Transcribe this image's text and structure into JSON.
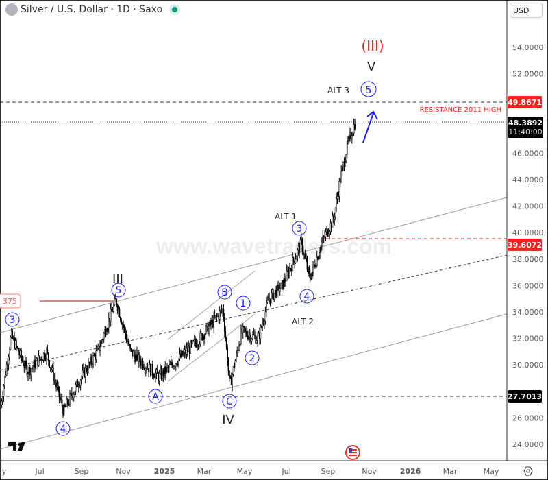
{
  "header": {
    "title": "Silver / U.S. Dollar · 1D · Saxo",
    "currency": "USD",
    "icons": [
      "silver-symbol-icon",
      "market-open-dot-icon"
    ]
  },
  "price_labels": {
    "resistance": "49.8671",
    "last": "48.3892",
    "countdown": "11:40:00",
    "level_mid": "39.6072",
    "level_low": "27.7013",
    "left_level": "375"
  },
  "annotations": {
    "resistance_text": "RESISTANCE 2011  HIGH",
    "degree_III_paren": "(III)",
    "V": "V",
    "III": "III",
    "IV": "IV",
    "alt1": "ALT 1",
    "alt2": "ALT 2",
    "alt3": "ALT 3",
    "circles": {
      "w3_left": "3",
      "w4_left": "4",
      "w5_III": "5",
      "A": "A",
      "B": "B",
      "C": "C",
      "w1": "1",
      "w2": "2",
      "w3": "3",
      "w4": "4",
      "w5": "5"
    }
  },
  "watermark": "www.wavetraders.com",
  "colors": {
    "wave": "#1a1aff",
    "red": "#ff1f1f",
    "candle": "#000000",
    "channel": "#9e9e9e"
  },
  "chart_data": {
    "type": "candlestick",
    "title": "Silver / U.S. Dollar · 1D · Saxo",
    "ylim": [
      23,
      56
    ],
    "y_ticks": [
      "54.0000",
      "52.0000",
      "46.0000",
      "44.0000",
      "42.0000",
      "40.0000",
      "38.0000",
      "36.0000",
      "34.0000",
      "32.0000",
      "30.0000",
      "26.0000",
      "24.0000"
    ],
    "x_ticks": [
      "y",
      "Jul",
      "Sep",
      "Nov",
      "2025",
      "Mar",
      "May",
      "Jul",
      "Sep",
      "Nov",
      "2026",
      "Mar",
      "May"
    ],
    "approx_close_path": [
      [
        "2024-05-06",
        27.0
      ],
      [
        "2024-05-21",
        32.2
      ],
      [
        "2024-06-14",
        29.5
      ],
      [
        "2024-07-12",
        31.0
      ],
      [
        "2024-08-06",
        26.5
      ],
      [
        "2024-08-31",
        29.0
      ],
      [
        "2024-09-25",
        31.0
      ],
      [
        "2024-10-22",
        34.9
      ],
      [
        "2024-11-12",
        31.0
      ],
      [
        "2024-12-24",
        29.1
      ],
      [
        "2025-01-23",
        30.5
      ],
      [
        "2025-02-22",
        32.0
      ],
      [
        "2025-03-28",
        34.2
      ],
      [
        "2025-04-07",
        28.4
      ],
      [
        "2025-04-24",
        32.5
      ],
      [
        "2025-05-19",
        32.0
      ],
      [
        "2025-06-03",
        35.0
      ],
      [
        "2025-06-23",
        36.0
      ],
      [
        "2025-07-21",
        39.2
      ],
      [
        "2025-08-02",
        36.5
      ],
      [
        "2025-08-22",
        39.5
      ],
      [
        "2025-09-06",
        41.0
      ],
      [
        "2025-09-16",
        44.0
      ],
      [
        "2025-09-26",
        46.5
      ],
      [
        "2025-10-08",
        48.39
      ]
    ],
    "horizontal_levels": [
      49.8671,
      48.3892,
      39.6072,
      27.7013,
      34.9375
    ]
  }
}
